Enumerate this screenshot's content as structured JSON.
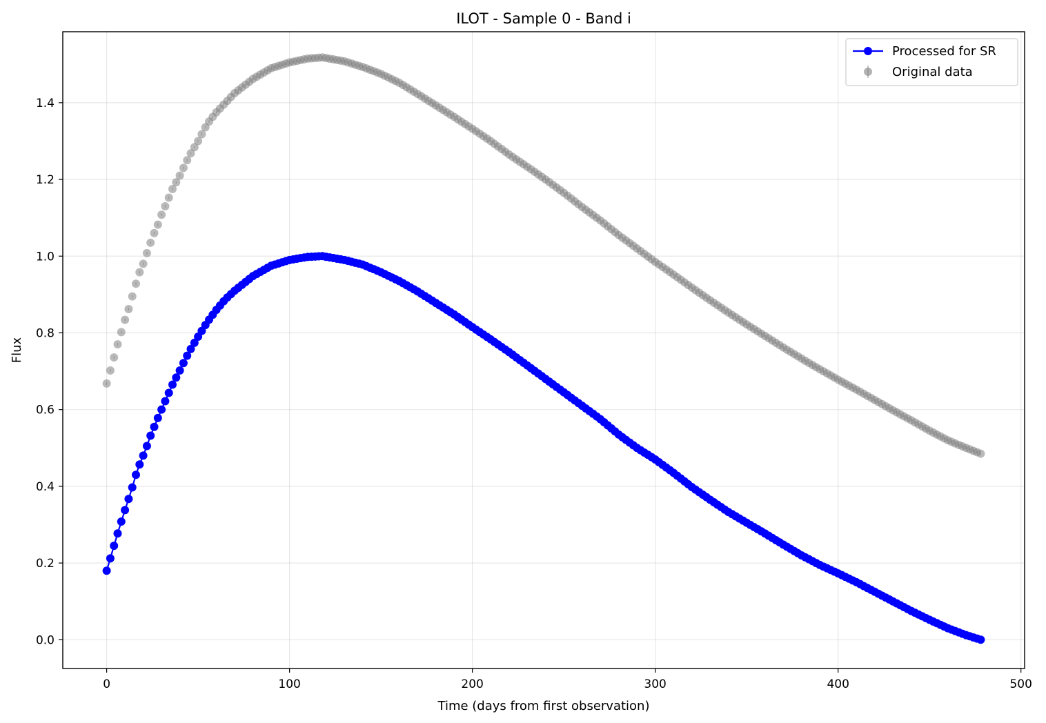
{
  "chart_data": {
    "type": "scatter",
    "title": "ILOT - Sample 0 - Band i",
    "xlabel": "Time (days from first observation)",
    "ylabel": "Flux",
    "xlim": [
      -24,
      502
    ],
    "ylim": [
      -0.075,
      1.585
    ],
    "xticks": [
      0,
      100,
      200,
      300,
      400,
      500
    ],
    "xtick_labels": [
      "0",
      "100",
      "200",
      "300",
      "400",
      "500"
    ],
    "yticks": [
      0.0,
      0.2,
      0.4,
      0.6,
      0.8,
      1.0,
      1.2,
      1.4
    ],
    "ytick_labels": [
      "0.0",
      "0.2",
      "0.4",
      "0.6",
      "0.8",
      "1.0",
      "1.2",
      "1.4"
    ],
    "grid": true,
    "legend_position": "top-right",
    "x_sampling": {
      "start": 0,
      "end": 478,
      "step": 2
    },
    "series": [
      {
        "name": "Processed for SR",
        "style": "line-with-markers",
        "color": "#0000ff",
        "anchor_points": [
          [
            0,
            0.18
          ],
          [
            2,
            0.212
          ],
          [
            4,
            0.245
          ],
          [
            6,
            0.277
          ],
          [
            8,
            0.308
          ],
          [
            10,
            0.338
          ],
          [
            12,
            0.367
          ],
          [
            14,
            0.397
          ],
          [
            16,
            0.43
          ],
          [
            18,
            0.457
          ],
          [
            20,
            0.48
          ],
          [
            22,
            0.505
          ],
          [
            24,
            0.532
          ],
          [
            26,
            0.555
          ],
          [
            28,
            0.578
          ],
          [
            30,
            0.6
          ],
          [
            32,
            0.622
          ],
          [
            36,
            0.665
          ],
          [
            40,
            0.702
          ],
          [
            45,
            0.75
          ],
          [
            50,
            0.79
          ],
          [
            55,
            0.828
          ],
          [
            60,
            0.86
          ],
          [
            65,
            0.888
          ],
          [
            70,
            0.91
          ],
          [
            80,
            0.948
          ],
          [
            90,
            0.975
          ],
          [
            100,
            0.99
          ],
          [
            110,
            0.998
          ],
          [
            118,
            1.0
          ],
          [
            130,
            0.99
          ],
          [
            140,
            0.978
          ],
          [
            150,
            0.958
          ],
          [
            160,
            0.935
          ],
          [
            170,
            0.908
          ],
          [
            180,
            0.878
          ],
          [
            190,
            0.848
          ],
          [
            200,
            0.815
          ],
          [
            210,
            0.783
          ],
          [
            220,
            0.75
          ],
          [
            230,
            0.715
          ],
          [
            240,
            0.68
          ],
          [
            250,
            0.645
          ],
          [
            260,
            0.61
          ],
          [
            270,
            0.575
          ],
          [
            280,
            0.535
          ],
          [
            290,
            0.5
          ],
          [
            300,
            0.47
          ],
          [
            310,
            0.435
          ],
          [
            320,
            0.398
          ],
          [
            330,
            0.365
          ],
          [
            340,
            0.333
          ],
          [
            350,
            0.305
          ],
          [
            360,
            0.277
          ],
          [
            370,
            0.248
          ],
          [
            380,
            0.22
          ],
          [
            390,
            0.195
          ],
          [
            400,
            0.173
          ],
          [
            410,
            0.15
          ],
          [
            420,
            0.125
          ],
          [
            430,
            0.1
          ],
          [
            440,
            0.075
          ],
          [
            450,
            0.052
          ],
          [
            460,
            0.03
          ],
          [
            470,
            0.012
          ],
          [
            478,
            0.0
          ]
        ]
      },
      {
        "name": "Original data",
        "style": "markers-with-errorbars",
        "color": "#808080",
        "anchor_points": [
          [
            0,
            0.668
          ],
          [
            2,
            0.702
          ],
          [
            4,
            0.736
          ],
          [
            6,
            0.77
          ],
          [
            8,
            0.802
          ],
          [
            10,
            0.834
          ],
          [
            12,
            0.862
          ],
          [
            14,
            0.895
          ],
          [
            16,
            0.928
          ],
          [
            18,
            0.958
          ],
          [
            20,
            0.98
          ],
          [
            22,
            1.008
          ],
          [
            24,
            1.035
          ],
          [
            26,
            1.06
          ],
          [
            28,
            1.082
          ],
          [
            30,
            1.108
          ],
          [
            32,
            1.13
          ],
          [
            36,
            1.175
          ],
          [
            40,
            1.21
          ],
          [
            45,
            1.26
          ],
          [
            50,
            1.3
          ],
          [
            55,
            1.345
          ],
          [
            60,
            1.375
          ],
          [
            65,
            1.4
          ],
          [
            70,
            1.425
          ],
          [
            80,
            1.462
          ],
          [
            90,
            1.49
          ],
          [
            100,
            1.505
          ],
          [
            110,
            1.515
          ],
          [
            118,
            1.518
          ],
          [
            130,
            1.508
          ],
          [
            140,
            1.493
          ],
          [
            150,
            1.475
          ],
          [
            160,
            1.452
          ],
          [
            170,
            1.423
          ],
          [
            180,
            1.393
          ],
          [
            190,
            1.363
          ],
          [
            200,
            1.332
          ],
          [
            210,
            1.3
          ],
          [
            220,
            1.265
          ],
          [
            230,
            1.233
          ],
          [
            240,
            1.2
          ],
          [
            250,
            1.165
          ],
          [
            260,
            1.128
          ],
          [
            270,
            1.093
          ],
          [
            280,
            1.055
          ],
          [
            290,
            1.02
          ],
          [
            300,
            0.985
          ],
          [
            310,
            0.952
          ],
          [
            320,
            0.918
          ],
          [
            330,
            0.885
          ],
          [
            340,
            0.853
          ],
          [
            350,
            0.822
          ],
          [
            360,
            0.792
          ],
          [
            370,
            0.762
          ],
          [
            380,
            0.733
          ],
          [
            390,
            0.705
          ],
          [
            400,
            0.678
          ],
          [
            410,
            0.652
          ],
          [
            420,
            0.625
          ],
          [
            430,
            0.598
          ],
          [
            440,
            0.572
          ],
          [
            450,
            0.545
          ],
          [
            460,
            0.52
          ],
          [
            470,
            0.5
          ],
          [
            478,
            0.485
          ]
        ]
      }
    ]
  }
}
